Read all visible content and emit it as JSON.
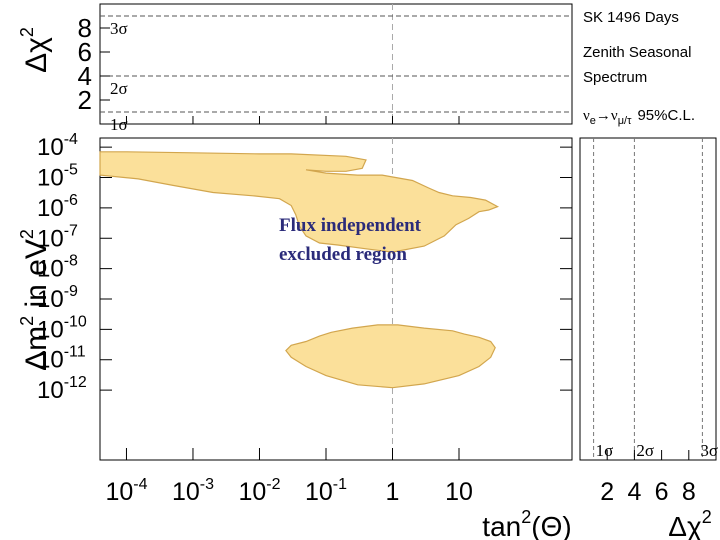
{
  "chart_data": [
    {
      "type": "line",
      "panel": "top",
      "ylabel_main": "Δχ",
      "ylabel_sup": "2",
      "x_scale": "log",
      "xlim": [
        4e-05,
        500
      ],
      "ylim": [
        0,
        10
      ],
      "y_ticks": [
        {
          "value": 2,
          "label": "2"
        },
        {
          "value": 4,
          "label": "4"
        },
        {
          "value": 6,
          "label": "6"
        },
        {
          "value": 8,
          "label": "8"
        }
      ],
      "sigma_levels": [
        {
          "value": 1,
          "label": "1σ"
        },
        {
          "value": 4,
          "label": "2σ"
        },
        {
          "value": 9,
          "label": "3σ"
        }
      ],
      "legend_lines": [
        "SK 1496 Days",
        "Zenith Seasonal",
        "Spectrum"
      ]
    },
    {
      "type": "area",
      "panel": "main",
      "xlabel_main": "tan",
      "xlabel_sup": "2",
      "xlabel_tail": "(Θ)",
      "ylabel_pre": "Δm",
      "ylabel_sup": "2",
      "ylabel_post": " in eV",
      "ylabel_sup2": "2",
      "x_scale": "log",
      "y_scale": "log",
      "xlim": [
        4e-05,
        500
      ],
      "ylim": [
        5e-15,
        0.0002
      ],
      "x_ticks": [
        {
          "value": 0.0001,
          "base": "10",
          "exp": "-4"
        },
        {
          "value": 0.001,
          "base": "10",
          "exp": "-3"
        },
        {
          "value": 0.01,
          "base": "10",
          "exp": "-2"
        },
        {
          "value": 0.1,
          "base": "10",
          "exp": "-1"
        },
        {
          "value": 1,
          "base": "1",
          "exp": ""
        },
        {
          "value": 10,
          "base": "10",
          "exp": ""
        }
      ],
      "y_ticks": [
        {
          "value": 0.0001,
          "base": "10",
          "exp": "-4"
        },
        {
          "value": 1e-05,
          "base": "10",
          "exp": "-5"
        },
        {
          "value": 1e-06,
          "base": "10",
          "exp": "-6"
        },
        {
          "value": 1e-07,
          "base": "10",
          "exp": "-7"
        },
        {
          "value": 1e-08,
          "base": "10",
          "exp": "-8"
        },
        {
          "value": 1e-09,
          "base": "10",
          "exp": "-9"
        },
        {
          "value": 1e-10,
          "base": "10",
          "exp": "-10"
        },
        {
          "value": 1e-11,
          "base": "10",
          "exp": "-11"
        },
        {
          "value": 1e-12,
          "base": "10",
          "exp": "-12"
        }
      ],
      "annotation_lines": [
        "Flux independent",
        "excluded region"
      ],
      "fill_color": "#fbe09a",
      "edge_color": "#d2a64e",
      "series": [
        {
          "region": "upper",
          "points": [
            [
              4e-05,
              7e-05
            ],
            [
              0.0001,
              7e-05
            ],
            [
              0.001,
              6.5e-05
            ],
            [
              0.01,
              6e-05
            ],
            [
              0.03,
              6e-05
            ],
            [
              0.2,
              5e-05
            ],
            [
              0.4,
              3.8e-05
            ],
            [
              0.35,
              2e-05
            ],
            [
              0.2,
              1.6e-05
            ],
            [
              0.1,
              1.6e-05
            ],
            [
              0.05,
              1.8e-05
            ],
            [
              0.1,
              1.4e-05
            ],
            [
              0.3,
              1.2e-05
            ],
            [
              0.7,
              1.2e-05
            ],
            [
              2,
              8e-06
            ],
            [
              3.5,
              4.5e-06
            ],
            [
              5,
              3.2e-06
            ],
            [
              8,
              2.5e-06
            ],
            [
              15,
              2.2e-06
            ],
            [
              25,
              1.8e-06
            ],
            [
              38,
              1.1e-06
            ],
            [
              28,
              8.5e-07
            ],
            [
              20,
              7.5e-07
            ],
            [
              14,
              4.5e-07
            ],
            [
              9,
              2.8e-07
            ],
            [
              6,
              1.2e-07
            ],
            [
              3,
              5.5e-08
            ],
            [
              1,
              3.5e-08
            ],
            [
              0.4,
              4.5e-08
            ],
            [
              0.15,
              6e-08
            ],
            [
              0.08,
              7e-08
            ],
            [
              0.05,
              1.2e-07
            ],
            [
              0.04,
              2.5e-07
            ],
            [
              0.035,
              6e-07
            ],
            [
              0.03,
              1.2e-06
            ],
            [
              0.02,
              2e-06
            ],
            [
              0.008,
              2.5e-06
            ],
            [
              0.002,
              3.2e-06
            ],
            [
              0.0005,
              5.5e-06
            ],
            [
              0.00015,
              9e-06
            ],
            [
              4e-05,
              1.2e-05
            ]
          ]
        },
        {
          "region": "lower",
          "points": [
            [
              0.12,
              8e-11
            ],
            [
              0.25,
              1.1e-10
            ],
            [
              0.6,
              1.4e-10
            ],
            [
              1.2,
              1.4e-10
            ],
            [
              3,
              1.1e-10
            ],
            [
              8,
              9e-11
            ],
            [
              12,
              7e-11
            ],
            [
              20,
              5.5e-11
            ],
            [
              30,
              4e-11
            ],
            [
              35,
              2.5e-11
            ],
            [
              30,
              1.2e-11
            ],
            [
              20,
              6e-12
            ],
            [
              10,
              3e-12
            ],
            [
              3,
              1.6e-12
            ],
            [
              1,
              1.2e-12
            ],
            [
              0.3,
              1.5e-12
            ],
            [
              0.1,
              3e-12
            ],
            [
              0.05,
              6e-12
            ],
            [
              0.03,
              1.2e-11
            ],
            [
              0.025,
              2e-11
            ],
            [
              0.03,
              3e-11
            ],
            [
              0.05,
              4e-11
            ],
            [
              0.08,
              6e-11
            ]
          ]
        }
      ]
    },
    {
      "type": "line",
      "panel": "right",
      "xlabel_main": "Δχ",
      "xlabel_sup": "2",
      "xlim": [
        0,
        10
      ],
      "x_ticks": [
        {
          "value": 2,
          "label": "2"
        },
        {
          "value": 4,
          "label": "4"
        },
        {
          "value": 6,
          "label": "6"
        },
        {
          "value": 8,
          "label": "8"
        }
      ],
      "sigma_levels": [
        {
          "value": 1,
          "label": "1σ"
        },
        {
          "value": 4,
          "label": "2σ"
        },
        {
          "value": 9,
          "label": "3σ"
        }
      ],
      "legend": {
        "nu": "ν",
        "nu_sub": "e",
        "arrow": "→",
        "nu2": "ν",
        "nu2_sub": "μ/τ",
        "cl": "95%C.L."
      }
    }
  ]
}
